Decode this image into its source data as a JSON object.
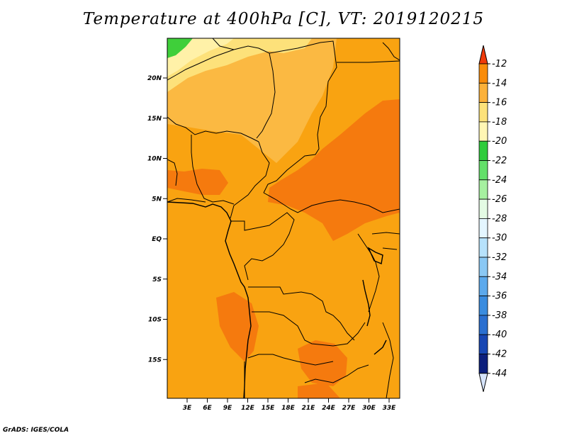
{
  "title": "Temperature at 400hPa [C], VT: 2019120215",
  "footer": "GrADS: IGES/COLA",
  "map": {
    "lat_ticks": [
      "20N",
      "15N",
      "10N",
      "5N",
      "EQ",
      "5S",
      "10S",
      "15S"
    ],
    "lon_ticks": [
      "3E",
      "6E",
      "9E",
      "12E",
      "15E",
      "18E",
      "21E",
      "24E",
      "27E",
      "30E",
      "33E"
    ]
  },
  "colorbar": {
    "labels": [
      "-12",
      "-14",
      "-16",
      "-18",
      "-20",
      "-22",
      "-24",
      "-26",
      "-28",
      "-30",
      "-32",
      "-34",
      "-36",
      "-38",
      "-40",
      "-42",
      "-44"
    ],
    "colors": [
      "#f05a0c",
      "#f98c0a",
      "#fbb13a",
      "#fde27a",
      "#fff6b4",
      "#2fcc3c",
      "#63e069",
      "#a6f0a0",
      "#e4fbe4",
      "#e4f6ff",
      "#b7e2fb",
      "#8ac8f4",
      "#5ca9ec",
      "#3a8cdf",
      "#2a6fd0",
      "#1746b3",
      "#0c1f7c"
    ],
    "top_arrow_color": "#f03a0a",
    "bottom_arrow_color": "#d6e4fb"
  },
  "field_colors": {
    "base": "#f9a311",
    "warm": "#f57a0e",
    "light_orange": "#fbb942",
    "yellow": "#fde17a",
    "pale": "#fff1a8",
    "green": "#3fcf3a"
  }
}
